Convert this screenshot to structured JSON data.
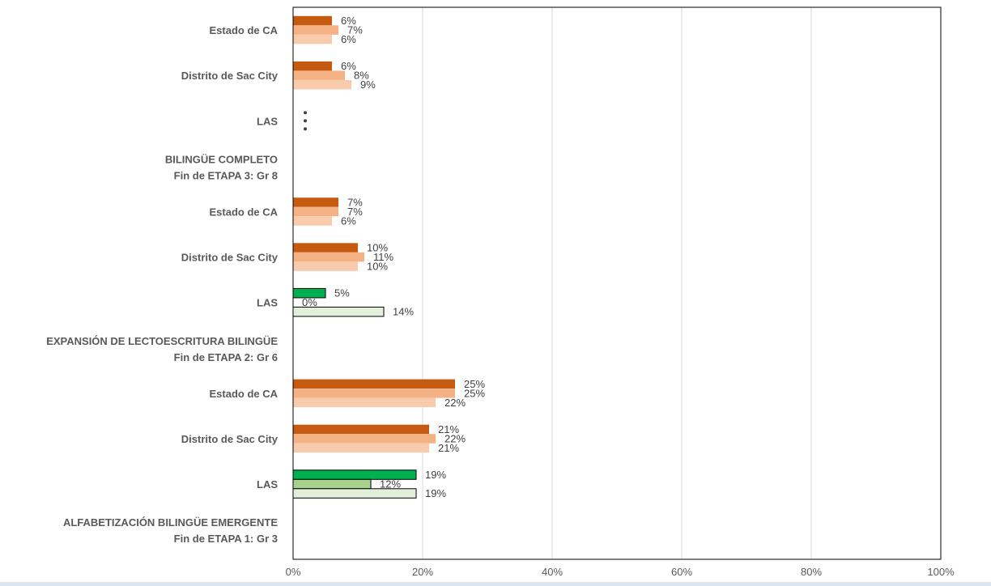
{
  "chart_data": {
    "type": "bar",
    "orientation": "horizontal",
    "xlim": [
      0,
      100
    ],
    "x_ticks": [
      "0%",
      "20%",
      "40%",
      "60%",
      "80%",
      "100%"
    ],
    "grid": true,
    "legend": "none",
    "colors": {
      "dark_orange": "#c55a11",
      "mid_orange": "#f4b183",
      "light_orange": "#f8cbad",
      "dark_green": "#00b050",
      "mid_green": "#a9d18e",
      "light_green": "#e2efd9",
      "outline": "#000000",
      "grid": "#d9d9d9"
    },
    "rows": [
      {
        "kind": "category",
        "label": "Estado de CA",
        "values": [
          6,
          7,
          6
        ],
        "labels": [
          "6%",
          "7%",
          "6%"
        ],
        "palette": "orange"
      },
      {
        "kind": "category",
        "label": "Distrito de Sac City",
        "values": [
          6,
          8,
          9
        ],
        "labels": [
          "6%",
          "8%",
          "9%"
        ],
        "palette": "orange"
      },
      {
        "kind": "category",
        "label": "LAS",
        "values": [],
        "labels": [],
        "palette": "green",
        "dots": true
      },
      {
        "kind": "section",
        "lines": [
          "BILINGÜE COMPLETO",
          "Fin de ETAPA 3: Gr 8"
        ]
      },
      {
        "kind": "category",
        "label": "Estado de CA",
        "values": [
          7,
          7,
          6
        ],
        "labels": [
          "7%",
          "7%",
          "6%"
        ],
        "palette": "orange"
      },
      {
        "kind": "category",
        "label": "Distrito de Sac City",
        "values": [
          10,
          11,
          10
        ],
        "labels": [
          "10%",
          "11%",
          "10%"
        ],
        "palette": "orange"
      },
      {
        "kind": "category",
        "label": "LAS",
        "values": [
          5,
          0,
          14
        ],
        "labels": [
          "5%",
          "0%",
          "14%"
        ],
        "palette": "green"
      },
      {
        "kind": "section",
        "lines": [
          "EXPANSIÓN DE LECTOESCRITURA BILINGÜE",
          "Fin de ETAPA 2: Gr 6"
        ]
      },
      {
        "kind": "category",
        "label": "Estado de CA",
        "values": [
          25,
          25,
          22
        ],
        "labels": [
          "25%",
          "25%",
          "22%"
        ],
        "palette": "orange"
      },
      {
        "kind": "category",
        "label": "Distrito de Sac City",
        "values": [
          21,
          22,
          21
        ],
        "labels": [
          "21%",
          "22%",
          "21%"
        ],
        "palette": "orange"
      },
      {
        "kind": "category",
        "label": "LAS",
        "values": [
          19,
          12,
          19
        ],
        "labels": [
          "19%",
          "12%",
          "19%"
        ],
        "palette": "green"
      },
      {
        "kind": "section",
        "lines": [
          "ALFABETIZACIÓN BILINGÜE EMERGENTE",
          "Fin de ETAPA 1: Gr 3"
        ]
      }
    ]
  }
}
